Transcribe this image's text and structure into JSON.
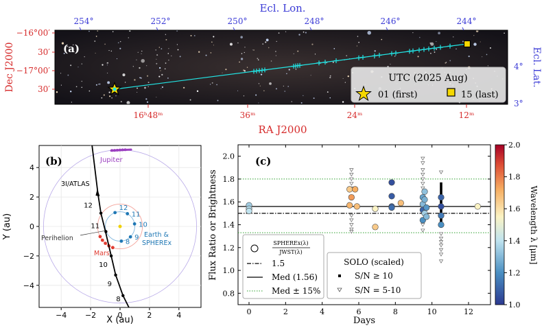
{
  "panel_a": {
    "label": "(a)",
    "top_axis_label": "Ecl. Lon.",
    "top_ticks": [
      "254°",
      "252°",
      "250°",
      "248°",
      "246°",
      "244°"
    ],
    "left_axis_label": "Dec J2000",
    "left_ticks": [
      "−16°00′",
      "30′",
      "−17°00′",
      "30′"
    ],
    "right_axis_label": "Ecl. Lat.",
    "right_ticks": [
      "4°",
      "3°"
    ],
    "bottom_axis_label": "RA J2000",
    "bottom_ticks": [
      "16ʰ48ᵐ",
      "36ᵐ",
      "24ᵐ",
      "12ᵐ"
    ],
    "legend_title": "UTC (2025 Aug)",
    "legend_first": "01 (first)",
    "legend_last": "15 (last)",
    "colors": {
      "track": "#22e5e5",
      "first": "#f5d800",
      "last": "#f5d800"
    }
  },
  "panel_b": {
    "label": "(b)",
    "xlabel": "X (au)",
    "ylabel": "Y (au)",
    "xticks": [
      "−4",
      "−2",
      "0",
      "2",
      "4"
    ],
    "yticks": [
      "−4",
      "−2",
      "0",
      "2",
      "4"
    ],
    "jupiter_label": "Jupiter",
    "comet_label": "3I/ATLAS",
    "perihelion_label": "Perihelion",
    "mars_label": "Mars",
    "earth_label": "Earth &",
    "spherex_label": "SPHEREx",
    "comet_marks": [
      "12",
      "11",
      "10",
      "9",
      "8"
    ],
    "earth_marks": [
      "12",
      "11",
      "10",
      "9",
      "8"
    ],
    "colors": {
      "jupiter": "#9b3fc0",
      "mars": "#e03a2f",
      "earth": "#1f77b4",
      "sun": "#f0d000",
      "comet": "#000000"
    }
  },
  "panel_c": {
    "label": "(c)",
    "xlabel": "Days",
    "ylabel": "Flux Ratio or Brightness",
    "xticks": [
      "0",
      "2",
      "4",
      "6",
      "8",
      "10",
      "12"
    ],
    "yticks": [
      "0.8",
      "1.0",
      "1.2",
      "1.4",
      "1.6",
      "1.8",
      "2.0"
    ],
    "legend": {
      "ratio_label": "SPHEREx(λ)",
      "ratio_label_den": "JWST(λ)",
      "dashdot_label": "1.5",
      "median_label": "Med (1.56)",
      "band_label": "Med ± 15%",
      "solo_title": "SOLO (scaled)",
      "solo_high": "S/N ≥ 10",
      "solo_low": "S/N = 5-10"
    },
    "colorbar_label": "Wavelength λ [μm]",
    "colorbar_ticks": [
      "1.0",
      "1.2",
      "1.4",
      "1.6",
      "1.8",
      "2.0"
    ]
  },
  "chart_data": [
    {
      "type": "scatter",
      "panel": "a",
      "xlabel": "RA J2000",
      "ylabel": "Dec J2000",
      "track_dec_deg": [
        -17.54,
        -16.08
      ],
      "track_ra_hours": [
        16.81,
        16.2
      ],
      "first_epoch": "01",
      "last_epoch": "15"
    },
    {
      "type": "line",
      "panel": "b",
      "xlabel": "X (au)",
      "ylabel": "Y (au)",
      "xlim": [
        -5.5,
        5.5
      ],
      "ylim": [
        -5.5,
        5.5
      ],
      "orbits_au": {
        "earth": 1.0,
        "mars": 1.52,
        "jupiter": 5.2
      },
      "comet_path": [
        [
          -1.9,
          5.5
        ],
        [
          -1.5,
          2.2
        ],
        [
          -1.3,
          0.9
        ],
        [
          -1.0,
          -0.3
        ],
        [
          -0.6,
          -2.0
        ],
        [
          -0.3,
          -3.3
        ],
        [
          0.2,
          -4.7
        ],
        [
          0.6,
          -5.5
        ]
      ]
    },
    {
      "type": "scatter",
      "panel": "c",
      "xlabel": "Days",
      "ylabel": "Flux Ratio or Brightness",
      "xlim": [
        -0.6,
        13.2
      ],
      "ylim": [
        0.7,
        2.1
      ],
      "hlines": {
        "median": 1.56,
        "dashdot": 1.5,
        "band_upper": 1.8,
        "band_lower": 1.33
      },
      "ratio_points": [
        {
          "x": 0.0,
          "y": 1.57,
          "w": 1.35
        },
        {
          "x": 0.0,
          "y": 1.54,
          "w": 1.38
        },
        {
          "x": 0.0,
          "y": 1.52,
          "w": 1.4
        },
        {
          "x": 5.5,
          "y": 1.71,
          "w": 1.65
        },
        {
          "x": 5.5,
          "y": 1.57,
          "w": 1.7
        },
        {
          "x": 5.6,
          "y": 1.64,
          "w": 1.75
        },
        {
          "x": 5.8,
          "y": 1.71,
          "w": 1.72
        },
        {
          "x": 5.9,
          "y": 1.56,
          "w": 1.68
        },
        {
          "x": 6.9,
          "y": 1.54,
          "w": 1.55
        },
        {
          "x": 6.9,
          "y": 1.38,
          "w": 1.65
        },
        {
          "x": 7.8,
          "y": 1.77,
          "w": 1.05
        },
        {
          "x": 7.8,
          "y": 1.65,
          "w": 1.08
        },
        {
          "x": 7.8,
          "y": 1.56,
          "w": 1.1
        },
        {
          "x": 7.8,
          "y": 1.55,
          "w": 1.12
        },
        {
          "x": 8.3,
          "y": 1.59,
          "w": 1.68
        },
        {
          "x": 9.5,
          "y": 1.64,
          "w": 1.25
        },
        {
          "x": 9.5,
          "y": 1.58,
          "w": 1.3
        },
        {
          "x": 9.5,
          "y": 1.53,
          "w": 1.1
        },
        {
          "x": 9.5,
          "y": 1.44,
          "w": 1.2
        },
        {
          "x": 9.6,
          "y": 1.69,
          "w": 1.32
        },
        {
          "x": 9.6,
          "y": 1.62,
          "w": 1.28
        },
        {
          "x": 9.6,
          "y": 1.5,
          "w": 1.35
        },
        {
          "x": 9.7,
          "y": 1.55,
          "w": 1.22
        },
        {
          "x": 9.7,
          "y": 1.47,
          "w": 1.3
        },
        {
          "x": 10.5,
          "y": 1.64,
          "w": 1.1
        },
        {
          "x": 10.5,
          "y": 1.56,
          "w": 1.05
        },
        {
          "x": 10.5,
          "y": 1.48,
          "w": 1.15
        },
        {
          "x": 10.5,
          "y": 1.4,
          "w": 1.2
        },
        {
          "x": 12.5,
          "y": 1.56,
          "w": 1.55
        }
      ],
      "solo_high": {
        "x": 10.5,
        "y": [
          1.76,
          1.74,
          1.72,
          1.7,
          1.68,
          1.66,
          1.64,
          1.62,
          1.6,
          1.58,
          1.56,
          1.54,
          1.52,
          1.5,
          1.48,
          1.46,
          1.44,
          1.42,
          1.4
        ]
      },
      "solo_low": [
        {
          "x": 5.6,
          "y": 1.88
        },
        {
          "x": 5.6,
          "y": 1.84
        },
        {
          "x": 5.6,
          "y": 1.8
        },
        {
          "x": 5.6,
          "y": 1.76
        },
        {
          "x": 5.6,
          "y": 1.72
        },
        {
          "x": 5.6,
          "y": 1.48
        },
        {
          "x": 5.6,
          "y": 1.44
        },
        {
          "x": 5.6,
          "y": 1.4
        },
        {
          "x": 5.6,
          "y": 1.36
        },
        {
          "x": 5.6,
          "y": 1.34
        },
        {
          "x": 9.5,
          "y": 1.98
        },
        {
          "x": 9.5,
          "y": 1.94
        },
        {
          "x": 9.5,
          "y": 1.88
        },
        {
          "x": 9.5,
          "y": 1.84
        },
        {
          "x": 9.5,
          "y": 1.8
        },
        {
          "x": 9.5,
          "y": 1.76
        },
        {
          "x": 9.5,
          "y": 1.72
        },
        {
          "x": 9.5,
          "y": 1.44
        },
        {
          "x": 9.5,
          "y": 1.4
        },
        {
          "x": 9.5,
          "y": 1.35
        },
        {
          "x": 10.5,
          "y": 1.86
        },
        {
          "x": 10.5,
          "y": 1.32
        },
        {
          "x": 10.5,
          "y": 1.28
        },
        {
          "x": 10.5,
          "y": 1.25
        },
        {
          "x": 10.5,
          "y": 1.22
        },
        {
          "x": 10.5,
          "y": 1.18
        },
        {
          "x": 10.5,
          "y": 1.14
        },
        {
          "x": 10.5,
          "y": 1.08
        }
      ]
    }
  ]
}
